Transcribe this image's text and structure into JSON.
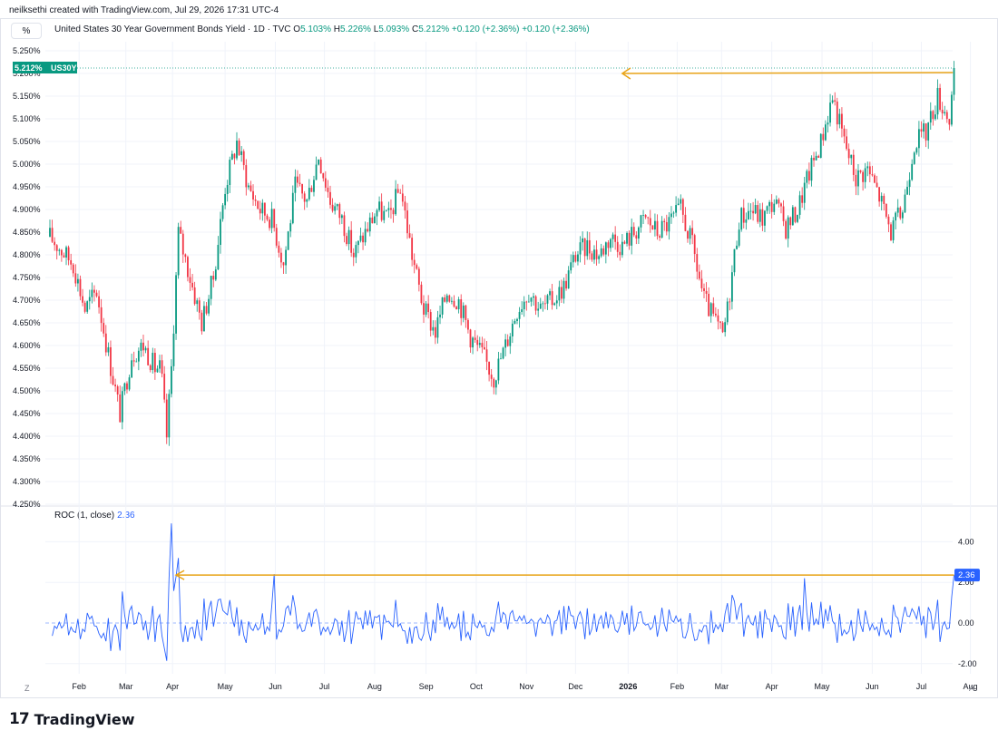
{
  "credit": "neilksethi created with TradingView.com, Jul 29, 2026 17:31 UTC-4",
  "unit_button": "%",
  "legend": {
    "symbol_title": "United States 30 Year Government Bonds Yield · 1D · TVC",
    "o_label": "O",
    "o_value": "5.103%",
    "h_label": "H",
    "h_value": "5.226%",
    "l_label": "L",
    "l_value": "5.093%",
    "c_label": "C",
    "c_value": "5.212%",
    "change": "+0.120 (+2.36%)",
    "change2": "+0.120 (+2.36%)"
  },
  "price_badge": {
    "value": "5.212%",
    "symbol": "US30Y"
  },
  "roc": {
    "label": "ROC (1, close)",
    "value": "2.36",
    "badge": "2.36"
  },
  "footer": {
    "logo_mark": "17",
    "brand": "TradingView"
  },
  "corner": {
    "left": "Z",
    "right": "A"
  },
  "colors": {
    "up": "#089981",
    "down": "#f23645",
    "roc_line": "#2962ff",
    "arrow": "#e8a317",
    "grid": "#f0f3fa",
    "price_line": "#089981"
  },
  "icons": [
    "tradingview-logo-icon"
  ],
  "chart_data": [
    {
      "type": "candlestick",
      "title": "United States 30 Year Government Bonds Yield · 1D · TVC",
      "ylabel": "%",
      "ylim": [
        4.25,
        5.25
      ],
      "y_ticks": [
        "5.250%",
        "5.200%",
        "5.150%",
        "5.100%",
        "5.050%",
        "5.000%",
        "4.950%",
        "4.900%",
        "4.850%",
        "4.800%",
        "4.750%",
        "4.700%",
        "4.650%",
        "4.600%",
        "4.550%",
        "4.500%",
        "4.450%",
        "4.400%",
        "4.350%",
        "4.300%",
        "4.250%"
      ],
      "x_labels": [
        "Feb",
        "Mar",
        "Apr",
        "May",
        "Jun",
        "Jul",
        "Aug",
        "Sep",
        "Oct",
        "Nov",
        "Dec",
        "2026",
        "Feb",
        "Mar",
        "Apr",
        "May",
        "Jun",
        "Jul",
        "Aug"
      ],
      "x_label_weeks": [
        2.5,
        6.5,
        10.5,
        15,
        19.3,
        23.5,
        27.8,
        32.2,
        36.5,
        40.8,
        45,
        49.5,
        53.7,
        57.5,
        61.8,
        66.1,
        70.4,
        74.6,
        78.8
      ],
      "last_value": 5.212,
      "annotation": "horizontal arrow at latest close pointing left",
      "anchors": [
        [
          0,
          4.84
        ],
        [
          2,
          4.78
        ],
        [
          3,
          4.68
        ],
        [
          4,
          4.72
        ],
        [
          5,
          4.58
        ],
        [
          6,
          4.45
        ],
        [
          7,
          4.58
        ],
        [
          8,
          4.6
        ],
        [
          9,
          4.55
        ],
        [
          9.5,
          4.55
        ],
        [
          10,
          4.4
        ],
        [
          10.4,
          4.55
        ],
        [
          11,
          4.85
        ],
        [
          12,
          4.75
        ],
        [
          13,
          4.65
        ],
        [
          14,
          4.75
        ],
        [
          15,
          4.95
        ],
        [
          16,
          5.05
        ],
        [
          17,
          4.95
        ],
        [
          18,
          4.9
        ],
        [
          19,
          4.88
        ],
        [
          20,
          4.78
        ],
        [
          21,
          4.95
        ],
        [
          22,
          4.92
        ],
        [
          23,
          5.02
        ],
        [
          24,
          4.92
        ],
        [
          25,
          4.88
        ],
        [
          26,
          4.8
        ],
        [
          27,
          4.85
        ],
        [
          28,
          4.9
        ],
        [
          29,
          4.88
        ],
        [
          30,
          4.95
        ],
        [
          31,
          4.8
        ],
        [
          32,
          4.68
        ],
        [
          33,
          4.63
        ],
        [
          34,
          4.72
        ],
        [
          35,
          4.7
        ],
        [
          36,
          4.62
        ],
        [
          37,
          4.58
        ],
        [
          38,
          4.53
        ],
        [
          39,
          4.6
        ],
        [
          40,
          4.68
        ],
        [
          41,
          4.72
        ],
        [
          42,
          4.68
        ],
        [
          43,
          4.7
        ],
        [
          44,
          4.73
        ],
        [
          45,
          4.8
        ],
        [
          46,
          4.82
        ],
        [
          47,
          4.8
        ],
        [
          48,
          4.84
        ],
        [
          49,
          4.82
        ],
        [
          50,
          4.85
        ],
        [
          51,
          4.88
        ],
        [
          52,
          4.85
        ],
        [
          53,
          4.87
        ],
        [
          54,
          4.9
        ],
        [
          55,
          4.82
        ],
        [
          56,
          4.7
        ],
        [
          57,
          4.65
        ],
        [
          57.6,
          4.62
        ],
        [
          58,
          4.68
        ],
        [
          59,
          4.88
        ],
        [
          60,
          4.9
        ],
        [
          61,
          4.88
        ],
        [
          62,
          4.92
        ],
        [
          63,
          4.86
        ],
        [
          64,
          4.9
        ],
        [
          65,
          4.98
        ],
        [
          66,
          5.05
        ],
        [
          67,
          5.15
        ],
        [
          68,
          5.05
        ],
        [
          69,
          4.97
        ],
        [
          70,
          4.99
        ],
        [
          71,
          4.93
        ],
        [
          72,
          4.85
        ],
        [
          73,
          4.9
        ],
        [
          74,
          5.05
        ],
        [
          75,
          5.07
        ],
        [
          76,
          5.15
        ],
        [
          77,
          5.1
        ],
        [
          77.5,
          5.212
        ]
      ]
    },
    {
      "type": "line",
      "title": "ROC (1, close)",
      "ylim": [
        -2.5,
        5
      ],
      "y_ticks": [
        "4.00",
        "2.00",
        "0.00",
        "-2.00"
      ],
      "last_value": 2.36,
      "peaks": [
        [
          10.5,
          4.9
        ],
        [
          11,
          3.2
        ],
        [
          19.2,
          2.4
        ],
        [
          64.6,
          2.2
        ]
      ],
      "annotation": "horizontal arrow at latest ROC value pointing left"
    }
  ]
}
